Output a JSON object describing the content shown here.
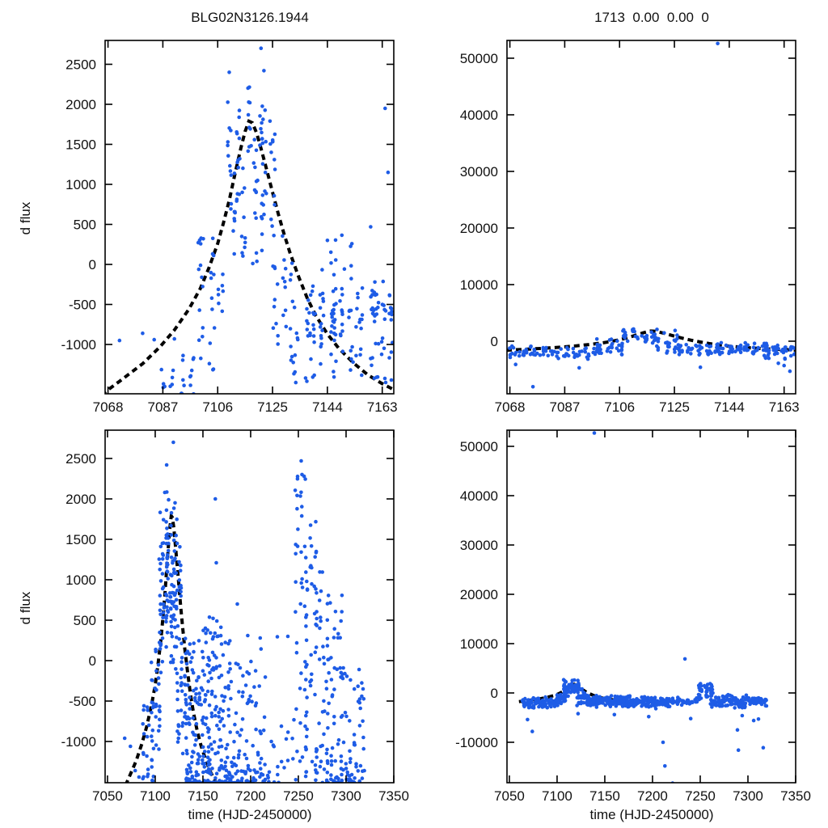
{
  "figure": {
    "background": "#ffffff",
    "point_color": "#1e5ce6",
    "model_color": "#000000",
    "axis_color": "#000000",
    "titles": {
      "left": "BLG02N3126.1944",
      "right": "1713  0.00  0.00  0"
    },
    "ylabel": "d flux",
    "xlabel": "time (HJD-2450000)"
  },
  "chart_data": {
    "type": "scatter",
    "description": "2x2 grid of difference-flux light curves; blue scatter points with dashed black microlensing model (peak ~1800 at t~7117, baseline ~-1600)",
    "model_curve": [
      [
        7060,
        -1760
      ],
      [
        7066,
        -1620
      ],
      [
        7072,
        -1460
      ],
      [
        7080,
        -1240
      ],
      [
        7086,
        -1030
      ],
      [
        7091,
        -820
      ],
      [
        7096,
        -560
      ],
      [
        7100,
        -300
      ],
      [
        7103,
        -40
      ],
      [
        7106,
        260
      ],
      [
        7108,
        520
      ],
      [
        7110,
        800
      ],
      [
        7112,
        1130
      ],
      [
        7114,
        1450
      ],
      [
        7115.5,
        1660
      ],
      [
        7116.8,
        1790
      ],
      [
        7118,
        1770
      ],
      [
        7119.5,
        1640
      ],
      [
        7121,
        1450
      ],
      [
        7123,
        1180
      ],
      [
        7125,
        900
      ],
      [
        7127,
        630
      ],
      [
        7129,
        380
      ],
      [
        7131,
        150
      ],
      [
        7134,
        -150
      ],
      [
        7137,
        -420
      ],
      [
        7140,
        -640
      ],
      [
        7144,
        -870
      ],
      [
        7148,
        -1050
      ],
      [
        7153,
        -1230
      ],
      [
        7158,
        -1380
      ],
      [
        7163,
        -1490
      ],
      [
        7170,
        -1620
      ]
    ],
    "panels": [
      {
        "id": "tl",
        "title": "BLG02N3126.1944",
        "xlim": [
          7067,
          7167
        ],
        "ylim": [
          -1616,
          2798
        ],
        "xticks": [
          7068,
          7087,
          7106,
          7125,
          7144,
          7163
        ],
        "yticks": [
          -1000,
          -500,
          0,
          500,
          1000,
          1500,
          2000,
          2500
        ],
        "show_xlabel": false,
        "clusters": [
          {
            "t0": 7087,
            "t1": 7090,
            "cols": 2,
            "n": 8,
            "y0": -1600,
            "y1": -1250,
            "bias": "uniform"
          },
          {
            "t0": 7094,
            "t1": 7097,
            "cols": 2,
            "n": 14,
            "y0": -1620,
            "y1": -1100,
            "bias": "low"
          },
          {
            "t0": 7100,
            "t1": 7104,
            "cols": 2,
            "n": 26,
            "y0": -1350,
            "y1": 330,
            "bias": "uniform"
          },
          {
            "t0": 7106,
            "t1": 7108,
            "cols": 1,
            "n": 7,
            "y0": -720,
            "y1": -60,
            "bias": "uniform"
          },
          {
            "t0": 7110,
            "t1": 7113,
            "cols": 2,
            "n": 22,
            "y0": 650,
            "y1": 2150,
            "bias": "mid"
          },
          {
            "t0": 7112,
            "t1": 7115,
            "cols": 2,
            "n": 20,
            "y0": -160,
            "y1": 1500,
            "bias": "mid"
          },
          {
            "t0": 7117,
            "t1": 7121,
            "cols": 2,
            "n": 20,
            "y0": 1250,
            "y1": 2350,
            "bias": "mid"
          },
          {
            "t0": 7119,
            "t1": 7125,
            "cols": 3,
            "n": 42,
            "y0": -320,
            "y1": 2280,
            "bias": "mid"
          },
          {
            "t0": 7126,
            "t1": 7132,
            "cols": 3,
            "n": 26,
            "y0": -1420,
            "y1": 420,
            "bias": "mid"
          },
          {
            "t0": 7133,
            "t1": 7137,
            "cols": 2,
            "n": 18,
            "y0": -1520,
            "y1": -380,
            "bias": "uniform"
          },
          {
            "t0": 7139,
            "t1": 7146,
            "cols": 3,
            "n": 44,
            "y0": -1480,
            "y1": 120,
            "bias": "mid"
          },
          {
            "t0": 7146,
            "t1": 7152,
            "cols": 3,
            "n": 40,
            "y0": -1520,
            "y1": 430,
            "bias": "mid"
          },
          {
            "t0": 7155,
            "t1": 7160,
            "cols": 2,
            "n": 28,
            "y0": -1460,
            "y1": -240,
            "bias": "uniform"
          },
          {
            "t0": 7161,
            "t1": 7166,
            "cols": 3,
            "n": 36,
            "y0": -1520,
            "y1": -180,
            "bias": "uniform"
          }
        ],
        "points": [
          [
            7072,
            -950
          ],
          [
            7080,
            -860
          ],
          [
            7084,
            -940
          ],
          [
            7091,
            -930
          ],
          [
            7110,
            2400
          ],
          [
            7121,
            2700
          ],
          [
            7122,
            2420
          ],
          [
            7164,
            1950
          ],
          [
            7165,
            1150
          ],
          [
            7159,
            470
          ],
          [
            7144,
            300
          ],
          [
            7101,
            320
          ]
        ]
      },
      {
        "id": "tr",
        "title": "1713  0.00  0.00  0",
        "xlim": [
          7067,
          7167
        ],
        "ylim": [
          -9290,
          53140
        ],
        "xticks": [
          7068,
          7087,
          7106,
          7125,
          7144,
          7163
        ],
        "yticks": [
          0,
          10000,
          20000,
          30000,
          40000,
          50000
        ],
        "show_xlabel": false,
        "clusters": [
          {
            "t0": 7069,
            "t1": 7098,
            "cols": 9,
            "n": 75,
            "y0": -3300,
            "y1": -700,
            "bias": "mid"
          },
          {
            "t0": 7099,
            "t1": 7106,
            "cols": 3,
            "n": 30,
            "y0": -2500,
            "y1": 500,
            "bias": "mid"
          },
          {
            "t0": 7108,
            "t1": 7118,
            "cols": 4,
            "n": 36,
            "y0": -1100,
            "y1": 2700,
            "bias": "mid"
          },
          {
            "t0": 7119,
            "t1": 7126,
            "cols": 3,
            "n": 30,
            "y0": -2700,
            "y1": 2400,
            "bias": "mid"
          },
          {
            "t0": 7127,
            "t1": 7140,
            "cols": 5,
            "n": 42,
            "y0": -2800,
            "y1": -100,
            "bias": "mid"
          },
          {
            "t0": 7141,
            "t1": 7156,
            "cols": 6,
            "n": 55,
            "y0": -2600,
            "y1": 0,
            "bias": "mid"
          },
          {
            "t0": 7157,
            "t1": 7166,
            "cols": 4,
            "n": 42,
            "y0": -3400,
            "y1": -200,
            "bias": "mid"
          }
        ],
        "points": [
          [
            7140,
            52600
          ],
          [
            7076,
            -8050
          ],
          [
            7070,
            -4100
          ],
          [
            7092,
            -4700
          ],
          [
            7134,
            -4600
          ],
          [
            7163,
            -4300
          ],
          [
            7165,
            -5300
          ],
          [
            7161,
            -3900
          ]
        ]
      },
      {
        "id": "bl",
        "title": "",
        "xlim": [
          7047.5,
          7350
        ],
        "ylim": [
          -1510,
          2850
        ],
        "xticks": [
          7050,
          7100,
          7150,
          7200,
          7250,
          7300,
          7350
        ],
        "yticks": [
          -1000,
          -500,
          0,
          500,
          1000,
          1500,
          2000,
          2500
        ],
        "show_xlabel": true,
        "clusters": [
          {
            "t0": 7088,
            "t1": 7097,
            "cols": 3,
            "n": 24,
            "y0": -1510,
            "y1": -550,
            "bias": "low"
          },
          {
            "t0": 7097,
            "t1": 7104,
            "cols": 3,
            "n": 30,
            "y0": -1510,
            "y1": 350,
            "bias": "mid"
          },
          {
            "t0": 7105,
            "t1": 7112,
            "cols": 3,
            "n": 48,
            "y0": -250,
            "y1": 2100,
            "bias": "mid"
          },
          {
            "t0": 7113,
            "t1": 7120,
            "cols": 3,
            "n": 52,
            "y0": -120,
            "y1": 2350,
            "bias": "mid"
          },
          {
            "t0": 7118,
            "t1": 7126,
            "cols": 3,
            "n": 40,
            "y0": -420,
            "y1": 2100,
            "bias": "mid"
          },
          {
            "t0": 7124,
            "t1": 7132,
            "cols": 3,
            "n": 36,
            "y0": -1510,
            "y1": 520,
            "bias": "mid"
          },
          {
            "t0": 7133,
            "t1": 7156,
            "cols": 8,
            "n": 130,
            "y0": -1510,
            "y1": 260,
            "bias": "low"
          },
          {
            "t0": 7156,
            "t1": 7178,
            "cols": 7,
            "n": 110,
            "y0": -1510,
            "y1": 300,
            "bias": "low"
          },
          {
            "t0": 7152,
            "t1": 7170,
            "cols": 5,
            "n": 14,
            "y0": 280,
            "y1": 540,
            "bias": "uniform"
          },
          {
            "t0": 7180,
            "t1": 7214,
            "cols": 10,
            "n": 95,
            "y0": -1510,
            "y1": 150,
            "bias": "low"
          },
          {
            "t0": 7218,
            "t1": 7244,
            "cols": 6,
            "n": 20,
            "y0": -1510,
            "y1": -550,
            "bias": "low"
          },
          {
            "t0": 7248,
            "t1": 7258,
            "cols": 3,
            "n": 46,
            "y0": -1510,
            "y1": 2420,
            "bias": "uniform"
          },
          {
            "t0": 7259,
            "t1": 7268,
            "cols": 3,
            "n": 40,
            "y0": -1510,
            "y1": 1880,
            "bias": "uniform"
          },
          {
            "t0": 7269,
            "t1": 7280,
            "cols": 4,
            "n": 44,
            "y0": -1510,
            "y1": 1450,
            "bias": "low"
          },
          {
            "t0": 7281,
            "t1": 7295,
            "cols": 5,
            "n": 55,
            "y0": -1510,
            "y1": 880,
            "bias": "low"
          },
          {
            "t0": 7296,
            "t1": 7318,
            "cols": 6,
            "n": 60,
            "y0": -1510,
            "y1": -80,
            "bias": "low"
          }
        ],
        "points": [
          [
            7068,
            -960
          ],
          [
            7074,
            -1060
          ],
          [
            7079,
            -1360
          ],
          [
            7083,
            -1440
          ],
          [
            7110,
            2080
          ],
          [
            7112,
            2420
          ],
          [
            7119,
            2700
          ],
          [
            7163,
            2000
          ],
          [
            7164,
            1210
          ],
          [
            7186,
            700
          ],
          [
            7197,
            310
          ],
          [
            7210,
            280
          ],
          [
            7228,
            295
          ],
          [
            7239,
            300
          ],
          [
            7253,
            2470
          ],
          [
            7256,
            2280
          ],
          [
            7189,
            -90
          ]
        ]
      },
      {
        "id": "br",
        "title": "",
        "xlim": [
          7047.5,
          7350
        ],
        "ylim": [
          -18200,
          53280
        ],
        "xticks": [
          7050,
          7100,
          7150,
          7200,
          7250,
          7300,
          7350
        ],
        "yticks": [
          -10000,
          0,
          10000,
          20000,
          30000,
          40000,
          50000
        ],
        "show_xlabel": true,
        "clusters": [
          {
            "t0": 7065,
            "t1": 7100,
            "cols": 10,
            "n": 90,
            "y0": -3300,
            "y1": -700,
            "bias": "mid"
          },
          {
            "t0": 7100,
            "t1": 7108,
            "cols": 3,
            "n": 30,
            "y0": -2600,
            "y1": 200,
            "bias": "mid"
          },
          {
            "t0": 7108,
            "t1": 7122,
            "cols": 5,
            "n": 55,
            "y0": -1000,
            "y1": 3100,
            "bias": "mid"
          },
          {
            "t0": 7122,
            "t1": 7132,
            "cols": 4,
            "n": 35,
            "y0": -2600,
            "y1": 1000,
            "bias": "mid"
          },
          {
            "t0": 7132,
            "t1": 7170,
            "cols": 12,
            "n": 120,
            "y0": -3000,
            "y1": -300,
            "bias": "mid"
          },
          {
            "t0": 7170,
            "t1": 7215,
            "cols": 13,
            "n": 130,
            "y0": -3300,
            "y1": -400,
            "bias": "mid"
          },
          {
            "t0": 7218,
            "t1": 7245,
            "cols": 7,
            "n": 40,
            "y0": -3000,
            "y1": -700,
            "bias": "mid"
          },
          {
            "t0": 7250,
            "t1": 7262,
            "cols": 3,
            "n": 40,
            "y0": -2200,
            "y1": 2600,
            "bias": "mid"
          },
          {
            "t0": 7262,
            "t1": 7318,
            "cols": 15,
            "n": 130,
            "y0": -3200,
            "y1": -300,
            "bias": "mid"
          }
        ],
        "points": [
          [
            7139,
            52700
          ],
          [
            7074,
            -7800
          ],
          [
            7069,
            -5400
          ],
          [
            7196,
            -4800
          ],
          [
            7211,
            -10000
          ],
          [
            7213,
            -14800
          ],
          [
            7221,
            -18300
          ],
          [
            7234,
            6900
          ],
          [
            7240,
            -5200
          ],
          [
            7289,
            -7500
          ],
          [
            7290,
            -11600
          ],
          [
            7294,
            -4600
          ],
          [
            7306,
            -5600
          ],
          [
            7311,
            -5300
          ],
          [
            7316,
            -11100
          ],
          [
            7122,
            -4200
          ],
          [
            7160,
            -4400
          ]
        ]
      }
    ]
  }
}
